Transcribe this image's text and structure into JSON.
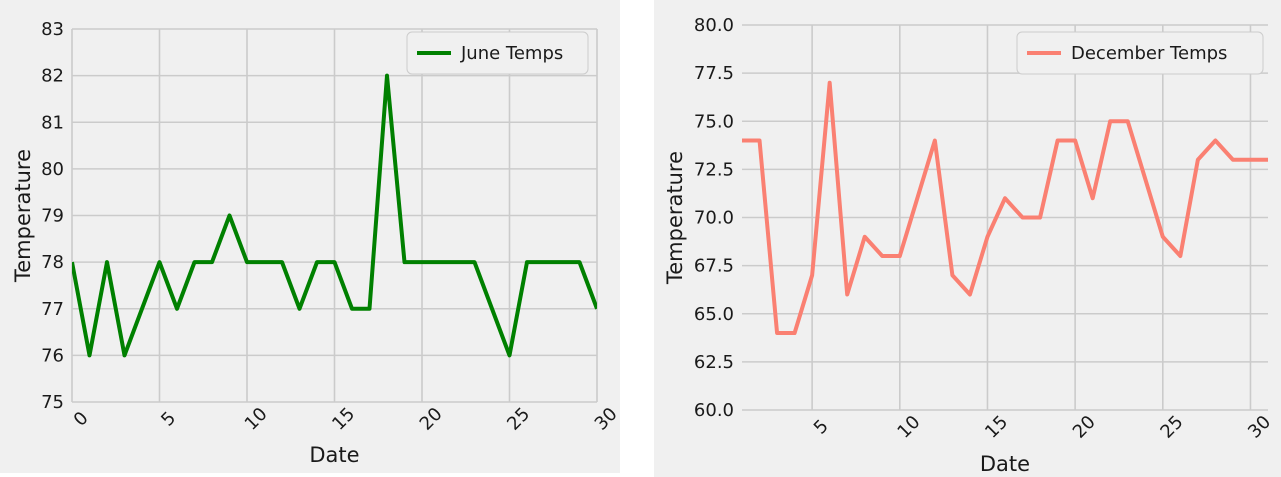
{
  "chart_data": [
    {
      "type": "line",
      "x": [
        0,
        1,
        2,
        3,
        4,
        5,
        6,
        7,
        8,
        9,
        10,
        11,
        12,
        13,
        14,
        15,
        16,
        17,
        18,
        19,
        20,
        21,
        22,
        23,
        24,
        25,
        26,
        27,
        28,
        29,
        30
      ],
      "series": [
        {
          "name": "June Temps",
          "color": "#008000",
          "values": [
            78,
            76,
            78,
            76,
            77,
            78,
            77,
            78,
            78,
            79,
            78,
            78,
            78,
            77,
            78,
            78,
            77,
            77,
            82,
            78,
            78,
            78,
            78,
            78,
            77,
            76,
            78,
            78,
            78,
            78,
            77
          ]
        }
      ],
      "xlabel": "Date",
      "ylabel": "Temperature",
      "xlim": [
        0,
        30
      ],
      "ylim": [
        75,
        83
      ],
      "xticks": [
        "0",
        "5",
        "10",
        "15",
        "20",
        "25",
        "30"
      ],
      "yticks": [
        "75",
        "76",
        "77",
        "78",
        "79",
        "80",
        "81",
        "82",
        "83"
      ],
      "grid": true,
      "legend": "top-right"
    },
    {
      "type": "line",
      "x": [
        1,
        2,
        3,
        4,
        5,
        6,
        7,
        8,
        9,
        10,
        11,
        12,
        13,
        14,
        15,
        16,
        17,
        18,
        19,
        20,
        21,
        22,
        23,
        24,
        25,
        26,
        27,
        28,
        29,
        30,
        31
      ],
      "series": [
        {
          "name": "December Temps",
          "color": "#fa8072",
          "values": [
            74,
            74,
            64,
            64,
            67,
            77,
            66,
            69,
            68,
            68,
            71,
            74,
            67,
            66,
            69,
            71,
            70,
            70,
            74,
            74,
            71,
            75,
            75,
            72,
            69,
            68,
            73,
            74,
            73,
            73,
            73
          ]
        }
      ],
      "xlabel": "Date",
      "ylabel": "Temperature",
      "xlim": [
        1,
        31
      ],
      "ylim": [
        60,
        80
      ],
      "xticks": [
        "5",
        "10",
        "15",
        "20",
        "25",
        "30"
      ],
      "yticks": [
        "60.0",
        "62.5",
        "65.0",
        "67.5",
        "70.0",
        "72.5",
        "75.0",
        "77.5",
        "80.0"
      ],
      "grid": true,
      "legend": "top-right"
    }
  ]
}
